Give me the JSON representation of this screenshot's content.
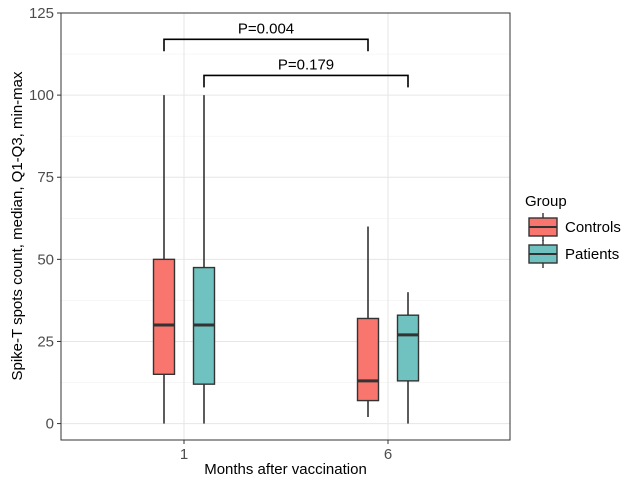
{
  "chart_data": {
    "type": "boxplot",
    "xlabel": "Months after vaccination",
    "ylabel": "Spike-T spots count, median, Q1-Q3, min-max",
    "ylim": [
      -5,
      125
    ],
    "yticks": [
      0,
      25,
      50,
      75,
      100,
      125
    ],
    "categories": [
      "1",
      "6"
    ],
    "grid": true,
    "legend": {
      "title": "Group",
      "position": "right"
    },
    "series": [
      {
        "name": "Controls",
        "color": "#F8766D",
        "boxes": [
          {
            "category": "1",
            "min": 0,
            "q1": 15,
            "median": 30,
            "q3": 50,
            "max": 100
          },
          {
            "category": "6",
            "min": 2,
            "q1": 7,
            "median": 13,
            "q3": 32,
            "max": 60
          }
        ]
      },
      {
        "name": "Patients",
        "color": "#6FC2BF",
        "boxes": [
          {
            "category": "1",
            "min": 0,
            "q1": 12,
            "median": 30,
            "q3": 47.5,
            "max": 100
          },
          {
            "category": "6",
            "min": 0,
            "q1": 13,
            "median": 27,
            "q3": 33,
            "max": 40
          }
        ]
      }
    ],
    "annotations": [
      {
        "label": "P=0.004",
        "from": {
          "category": "1",
          "series": "Controls"
        },
        "to": {
          "category": "6",
          "series": "Controls"
        },
        "y": 117
      },
      {
        "label": "P=0.179",
        "from": {
          "category": "1",
          "series": "Patients"
        },
        "to": {
          "category": "6",
          "series": "Patients"
        },
        "y": 106
      }
    ]
  }
}
